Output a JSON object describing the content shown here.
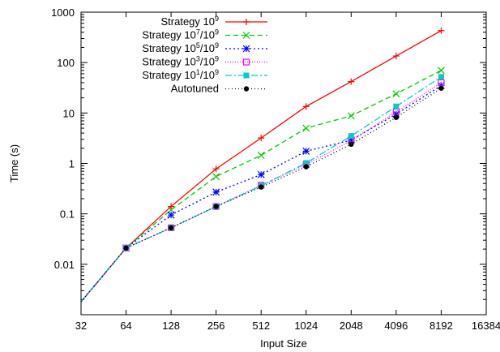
{
  "chart_data": {
    "type": "line",
    "xlabel": "Input Size",
    "ylabel": "Time (s)",
    "x_scale": "log2",
    "y_scale": "log10",
    "xlim": [
      32,
      16384
    ],
    "ylim": [
      0.001,
      1000
    ],
    "x_ticks": [
      "32",
      "64",
      "128",
      "256",
      "512",
      "1024",
      "2048",
      "4096",
      "8192",
      "16384"
    ],
    "y_ticks": [
      "0.01",
      "0.1",
      "1",
      "10",
      "100",
      "1000"
    ],
    "grid": false,
    "legend_position": "top-left",
    "series": [
      {
        "name": "Strategy 10^9",
        "label_base": "Strategy 10",
        "label_sup": "9",
        "label_tail": "",
        "label_tail_sup": "",
        "color": "#ff0000",
        "dash": "",
        "marker": "plus",
        "x": [
          32,
          64,
          128,
          256,
          512,
          1024,
          2048,
          4096,
          8192
        ],
        "y": [
          0.0018,
          0.021,
          0.14,
          0.78,
          3.2,
          13.5,
          42,
          135,
          430
        ]
      },
      {
        "name": "Strategy 10^7/10^9",
        "label_base": "Strategy 10",
        "label_sup": "7",
        "label_tail": "/10",
        "label_tail_sup": "9",
        "color": "#00cc00",
        "dash": "6,4",
        "marker": "cross",
        "x": [
          32,
          64,
          128,
          256,
          512,
          1024,
          2048,
          4096,
          8192
        ],
        "y": [
          0.0018,
          0.021,
          0.12,
          0.55,
          1.45,
          5.0,
          8.8,
          24,
          70
        ]
      },
      {
        "name": "Strategy 10^5/10^9",
        "label_base": "Strategy 10",
        "label_sup": "5",
        "label_tail": "/10",
        "label_tail_sup": "9",
        "color": "#0000ff",
        "dash": "2,3",
        "marker": "star",
        "x": [
          32,
          64,
          128,
          256,
          512,
          1024,
          2048,
          4096,
          8192
        ],
        "y": [
          0.0018,
          0.021,
          0.095,
          0.27,
          0.6,
          1.75,
          2.9,
          9.5,
          35
        ]
      },
      {
        "name": "Strategy 10^3/10^9",
        "label_base": "Strategy 10",
        "label_sup": "3",
        "label_tail": "/10",
        "label_tail_sup": "9",
        "color": "#ff00ff",
        "dash": "1,2",
        "marker": "square-open",
        "x": [
          32,
          64,
          128,
          256,
          512,
          1024,
          2048,
          4096,
          8192
        ],
        "y": [
          0.0018,
          0.021,
          0.053,
          0.14,
          0.37,
          0.95,
          2.85,
          10.5,
          40
        ]
      },
      {
        "name": "Strategy 10^1/10^9",
        "label_base": "Strategy 10",
        "label_sup": "1",
        "label_tail": "/10",
        "label_tail_sup": "9",
        "color": "#00cccc",
        "dash": "8,3,2,3",
        "marker": "square-filled",
        "x": [
          32,
          64,
          128,
          256,
          512,
          1024,
          2048,
          4096,
          8192
        ],
        "y": [
          0.0018,
          0.021,
          0.053,
          0.14,
          0.36,
          1.02,
          3.5,
          13.5,
          52
        ]
      },
      {
        "name": "Autotuned",
        "label_base": "Autotuned",
        "label_sup": "",
        "label_tail": "",
        "label_tail_sup": "",
        "color": "#000000",
        "dash": "1,3",
        "marker": "circle-filled",
        "x": [
          32,
          64,
          128,
          256,
          512,
          1024,
          2048,
          4096,
          8192
        ],
        "y": [
          0.0018,
          0.021,
          0.053,
          0.14,
          0.34,
          0.86,
          2.4,
          8.2,
          31
        ]
      }
    ]
  }
}
